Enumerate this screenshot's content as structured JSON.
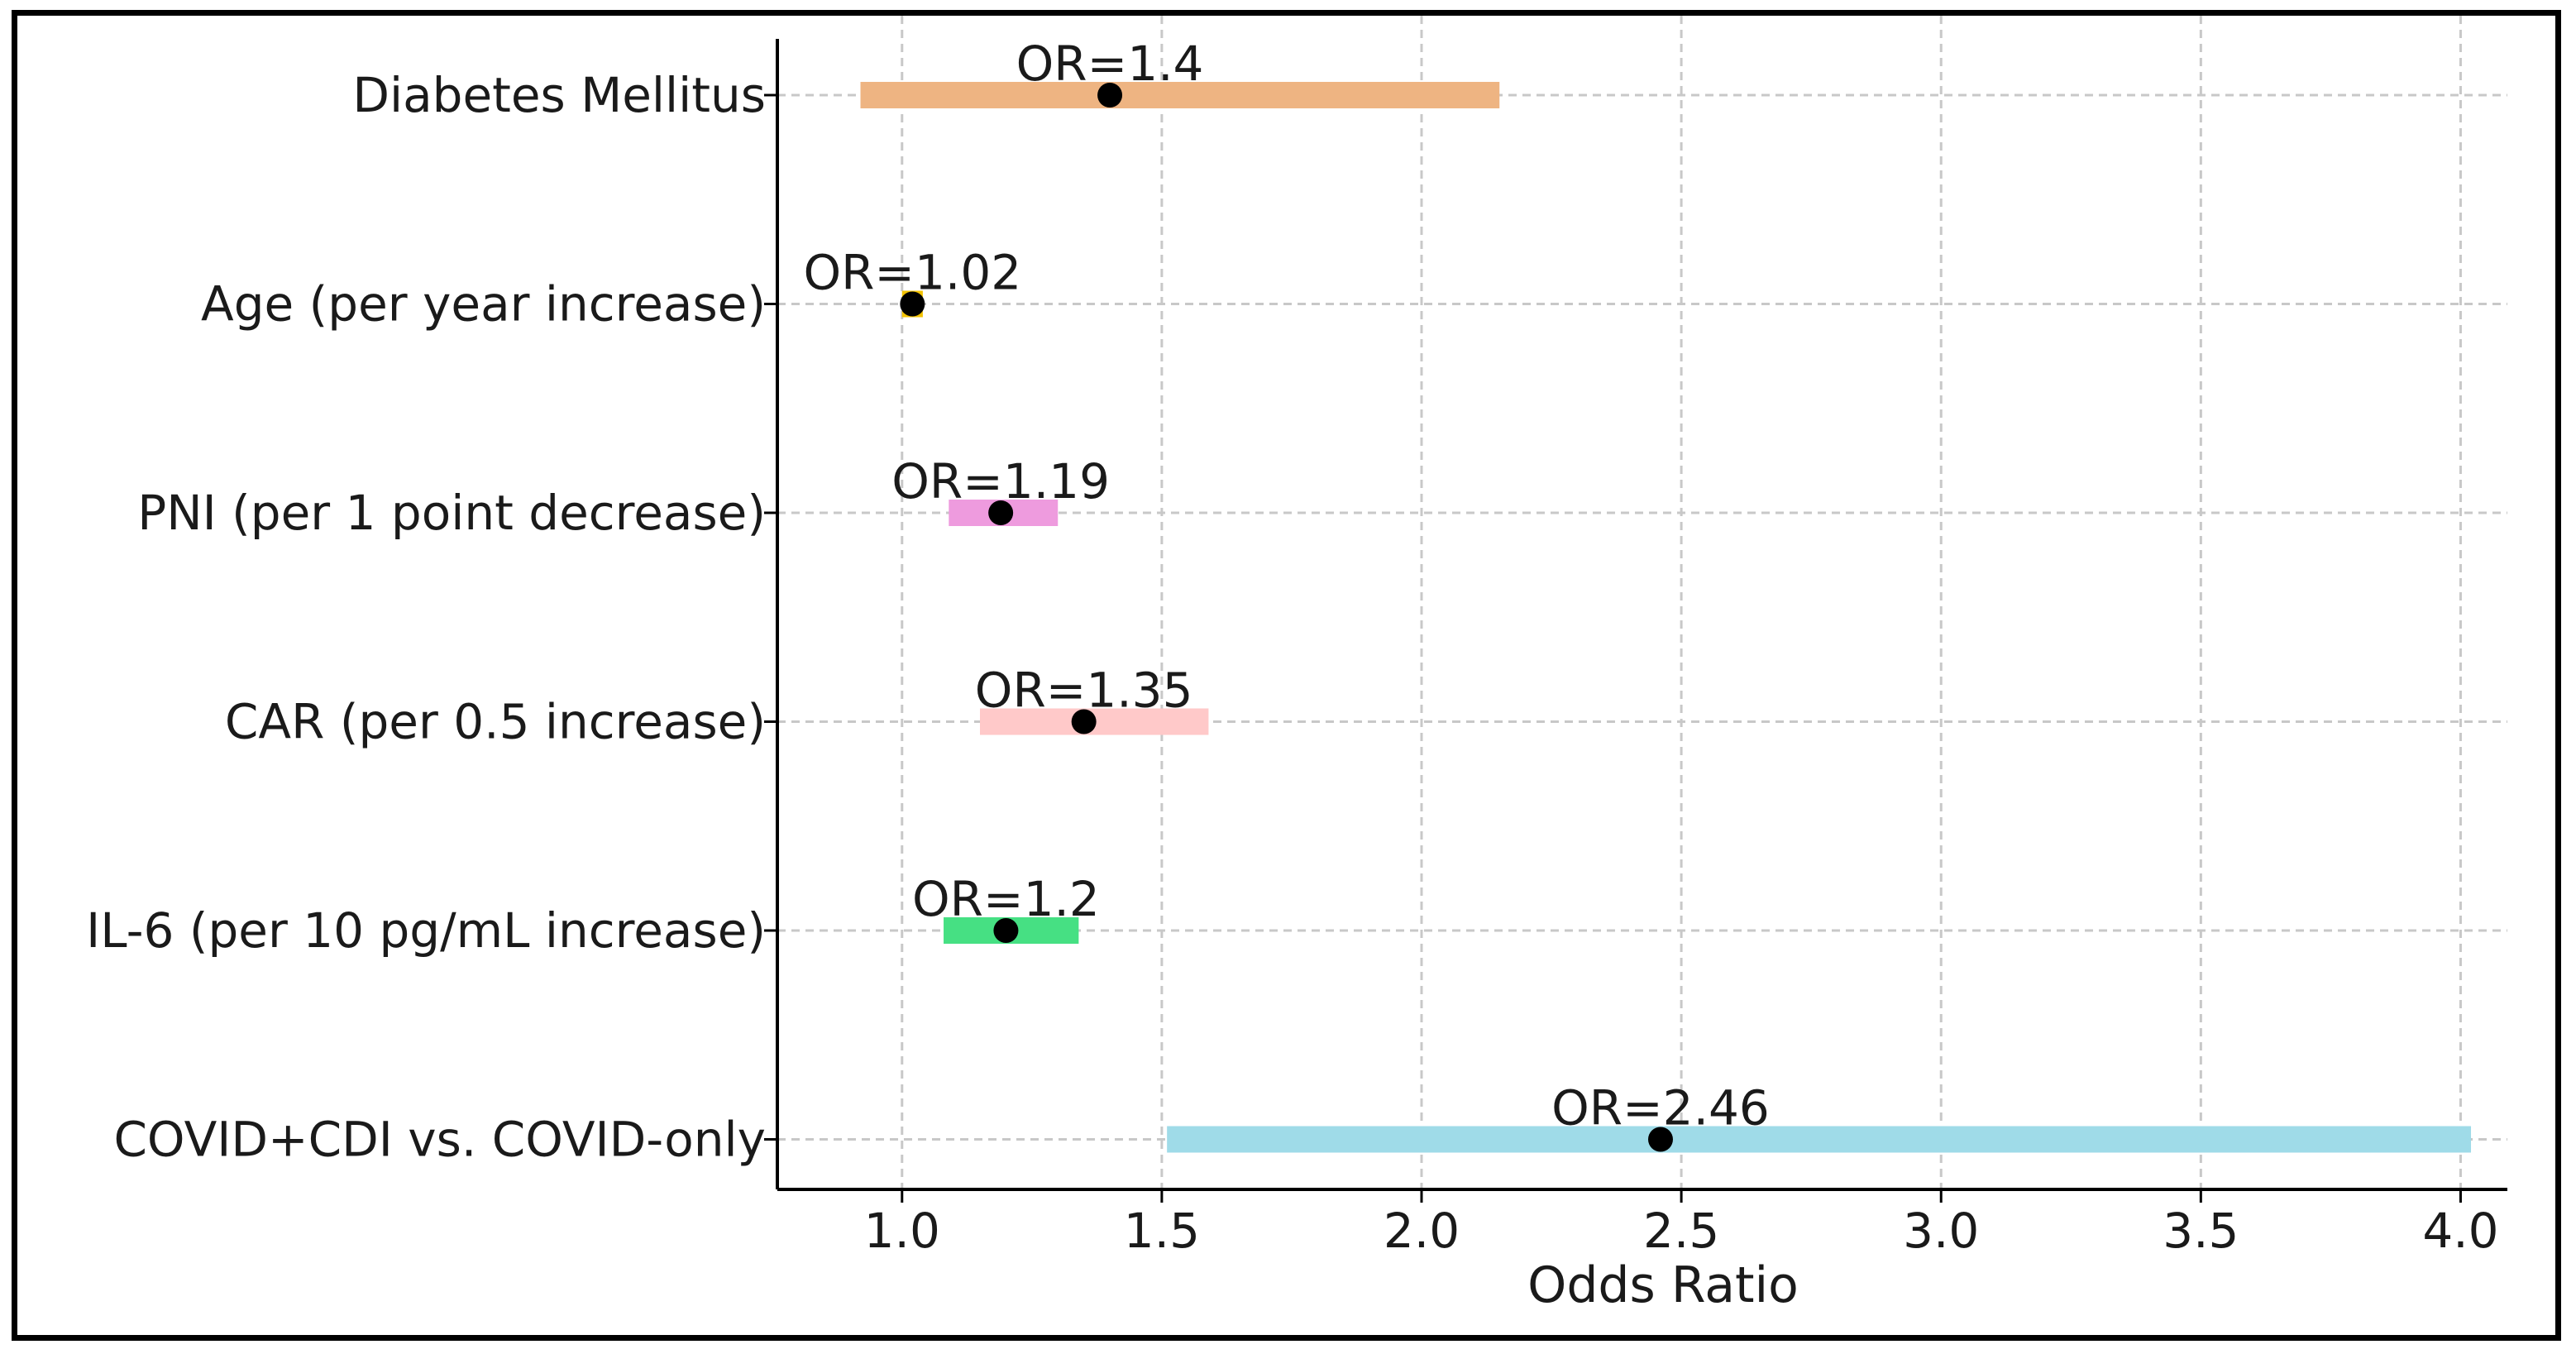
{
  "chart_data": {
    "type": "forest",
    "title": "",
    "xlabel": "Odds Ratio",
    "ylabel": "",
    "xlim": [
      0.76,
      4.09
    ],
    "xticks": [
      1.0,
      1.5,
      2.0,
      2.5,
      3.0,
      3.5,
      4.0
    ],
    "xtick_labels": [
      "1.0",
      "1.5",
      "2.0",
      "2.5",
      "3.0",
      "3.5",
      "4.0"
    ],
    "grid": true,
    "point_label_prefix": "OR=",
    "rows": [
      {
        "label": "Diabetes Mellitus",
        "or": 1.4,
        "or_label": "OR=1.4",
        "ci_low": 0.92,
        "ci_high": 2.15,
        "color": "#eeb482"
      },
      {
        "label": "Age (per year increase)",
        "or": 1.02,
        "or_label": "OR=1.02",
        "ci_low": 1.0,
        "ci_high": 1.04,
        "color": "#f2c200"
      },
      {
        "label": "PNI (per 1 point decrease)",
        "or": 1.19,
        "or_label": "OR=1.19",
        "ci_low": 1.09,
        "ci_high": 1.3,
        "color": "#ee9bde"
      },
      {
        "label": "CAR (per 0.5 increase)",
        "or": 1.35,
        "or_label": "OR=1.35",
        "ci_low": 1.15,
        "ci_high": 1.59,
        "color": "#ffc9c9"
      },
      {
        "label": "IL-6 (per 10 pg/mL increase)",
        "or": 1.2,
        "or_label": "OR=1.2",
        "ci_low": 1.08,
        "ci_high": 1.34,
        "color": "#46e083"
      },
      {
        "label": "COVID+CDI vs. COVID-only",
        "or": 2.46,
        "or_label": "OR=2.46",
        "ci_low": 1.51,
        "ci_high": 4.02,
        "color": "#9fdbe8"
      }
    ]
  }
}
